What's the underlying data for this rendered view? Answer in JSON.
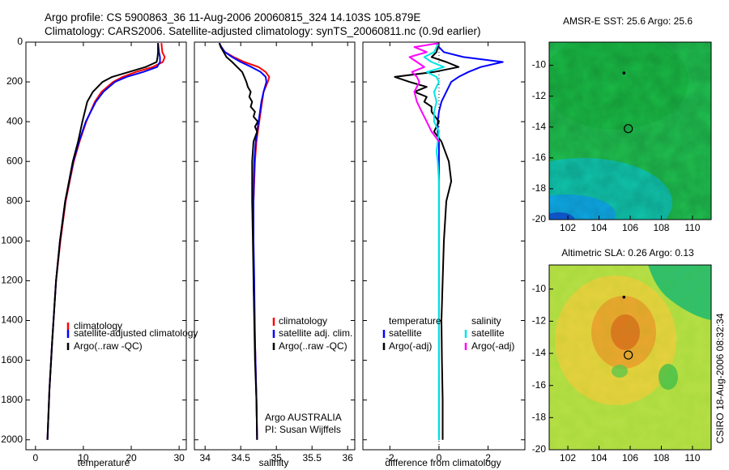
{
  "header": {
    "title_line1": "Argo profile: CS 5900863_36 11-Aug-2006 20060815_324 14.103S 105.879E",
    "title_line2": "Climatology: CARS2006. Satellite-adjusted climatology: synTS_20060811.nc (0.9d earlier)"
  },
  "colors": {
    "climatology": "#ff0000",
    "satellite": "#0000ff",
    "argo": "#000000",
    "satellite_sal_diff": "#00e5e5",
    "argo_sal_diff": "#ff00ff"
  },
  "credit": "CSIRO 18-Aug-2006 08:32:34",
  "chart_data": [
    {
      "type": "line",
      "name": "temperature-profile",
      "xlabel": "temperature",
      "xlim": [
        -2,
        31.5
      ],
      "ylim": [
        2050,
        0
      ],
      "xticks": [
        "0",
        "10",
        "20",
        "30"
      ],
      "yticks": [
        "0",
        "200",
        "400",
        "600",
        "800",
        "1000",
        "1200",
        "1400",
        "1600",
        "1800",
        "2000"
      ],
      "legend": [
        "climatology",
        "satellite-adjusted climatology",
        "Argo(..raw -QC)"
      ],
      "series": [
        {
          "name": "climatology",
          "color": "#ff0000",
          "depth": [
            5,
            50,
            75,
            100,
            125,
            150,
            175,
            200,
            250,
            300,
            400,
            500,
            600,
            800,
            1000,
            1200,
            1500,
            1750,
            2000
          ],
          "values": [
            26.3,
            26.5,
            27.0,
            26.6,
            24.5,
            21.0,
            18.2,
            16.2,
            13.8,
            12.4,
            10.6,
            9.2,
            8.0,
            6.3,
            5.2,
            4.3,
            3.5,
            2.9,
            2.5
          ]
        },
        {
          "name": "satellite-adjusted climatology",
          "color": "#0000ff",
          "depth": [
            5,
            50,
            75,
            100,
            125,
            150,
            175,
            200,
            250,
            300,
            400,
            500,
            600,
            800,
            1000,
            1200,
            1500,
            1750,
            2000
          ],
          "values": [
            25.6,
            25.8,
            26.0,
            26.0,
            25.4,
            22.5,
            19.0,
            16.6,
            14.2,
            12.6,
            10.5,
            9.1,
            7.9,
            6.2,
            5.1,
            4.3,
            3.5,
            2.9,
            2.5
          ]
        },
        {
          "name": "Argo(..raw -QC)",
          "color": "#000000",
          "depth": [
            5,
            50,
            75,
            100,
            125,
            150,
            175,
            200,
            250,
            300,
            350,
            400,
            500,
            600,
            800,
            1000,
            1200,
            1500,
            1750,
            2000
          ],
          "values": [
            25.6,
            25.6,
            25.5,
            25.3,
            23.0,
            19.5,
            16.0,
            14.0,
            12.0,
            10.8,
            10.3,
            9.8,
            8.9,
            7.8,
            6.2,
            5.1,
            4.3,
            3.5,
            2.9,
            2.5
          ]
        }
      ]
    },
    {
      "type": "line",
      "name": "salinity-profile",
      "xlabel": "salinity",
      "xlim": [
        33.85,
        36.1
      ],
      "ylim": [
        2050,
        0
      ],
      "xticks": [
        "34",
        "34.5",
        "35",
        "35.5",
        "36"
      ],
      "legend": [
        "climatology",
        "satellite adj. clim.",
        "Argo(..raw -QC)"
      ],
      "annotation": [
        "Argo AUSTRALIA",
        "PI: Susan Wijffels"
      ],
      "series": [
        {
          "name": "climatology",
          "color": "#ff0000",
          "depth": [
            5,
            25,
            50,
            75,
            100,
            125,
            150,
            175,
            200,
            250,
            300,
            350,
            400,
            450,
            500,
            600,
            800,
            1000,
            1200,
            1500,
            1800,
            2000
          ],
          "values": [
            34.2,
            34.22,
            34.28,
            34.4,
            34.55,
            34.75,
            34.85,
            34.9,
            34.88,
            34.82,
            34.8,
            34.78,
            34.76,
            34.74,
            34.72,
            34.7,
            34.68,
            34.68,
            34.68,
            34.7,
            34.72,
            34.73
          ]
        },
        {
          "name": "satellite adj. clim.",
          "color": "#0000ff",
          "depth": [
            5,
            25,
            50,
            75,
            100,
            125,
            150,
            175,
            200,
            250,
            300,
            350,
            400,
            450,
            500,
            600,
            800,
            1000,
            1200,
            1500,
            1800,
            2000
          ],
          "values": [
            34.2,
            34.23,
            34.28,
            34.38,
            34.5,
            34.65,
            34.78,
            34.85,
            34.86,
            34.82,
            34.79,
            34.77,
            34.75,
            34.73,
            34.71,
            34.69,
            34.68,
            34.68,
            34.69,
            34.7,
            34.72,
            34.73
          ]
        },
        {
          "name": "Argo(..raw -QC)",
          "color": "#000000",
          "depth": [
            5,
            25,
            50,
            75,
            100,
            125,
            150,
            175,
            200,
            225,
            250,
            275,
            300,
            325,
            350,
            375,
            400,
            425,
            450,
            500,
            600,
            800,
            1000,
            1200,
            1400,
            1600,
            1800,
            2000
          ],
          "values": [
            34.2,
            34.22,
            34.26,
            34.3,
            34.38,
            34.45,
            34.52,
            34.55,
            34.58,
            34.6,
            34.64,
            34.62,
            34.66,
            34.64,
            34.7,
            34.68,
            34.74,
            34.7,
            34.73,
            34.68,
            34.66,
            34.66,
            34.67,
            34.68,
            34.69,
            34.7,
            34.72,
            34.73
          ]
        }
      ]
    },
    {
      "type": "line",
      "name": "difference-profile",
      "xlabel": "difference from climatology",
      "xlim": [
        -3.1,
        3.5
      ],
      "ylim": [
        2050,
        0
      ],
      "xticks": [
        "-2",
        "0",
        "2"
      ],
      "legend_temperature_title": "temperature",
      "legend_salinity_title": "salinity",
      "legend": [
        "satellite",
        "Argo(-adj)",
        "satellite",
        "Argo(-adj)"
      ],
      "series": [
        {
          "name": "temperature satellite",
          "color": "#0000ff",
          "depth": [
            5,
            25,
            50,
            75,
            100,
            125,
            150,
            175,
            200,
            250,
            300,
            350,
            400,
            450,
            500,
            700,
            1000,
            1500,
            2000
          ],
          "values": [
            -0.1,
            0.0,
            0.2,
            1.0,
            2.6,
            1.7,
            1.2,
            0.8,
            0.5,
            0.3,
            0.1,
            0.0,
            -0.05,
            -0.05,
            0.0,
            0.0,
            0.0,
            0.0,
            0.0
          ]
        },
        {
          "name": "temperature Argo(-adj)",
          "color": "#000000",
          "depth": [
            5,
            50,
            75,
            100,
            125,
            150,
            175,
            200,
            225,
            250,
            275,
            300,
            325,
            350,
            400,
            450,
            500,
            600,
            700,
            800,
            1000,
            1200,
            1400,
            1600,
            1800,
            2000
          ],
          "values": [
            0.0,
            -0.1,
            -0.3,
            0.3,
            0.8,
            -0.2,
            -1.8,
            -1.2,
            -0.5,
            -1.0,
            -0.5,
            -0.6,
            -0.3,
            -0.3,
            0.0,
            -0.2,
            0.1,
            0.4,
            0.5,
            0.3,
            0.2,
            0.15,
            0.1,
            0.12,
            0.15,
            0.15
          ]
        },
        {
          "name": "salinity satellite",
          "color": "#00e5e5",
          "depth": [
            5,
            25,
            50,
            75,
            100,
            125,
            150,
            175,
            200,
            250,
            300,
            350,
            400,
            450,
            500,
            550,
            600,
            700,
            800,
            1000,
            1500,
            2000
          ],
          "values": [
            0.0,
            -0.1,
            -0.2,
            -0.6,
            -0.3,
            0.2,
            -0.5,
            -0.1,
            0.0,
            -0.2,
            -0.1,
            -0.2,
            -0.2,
            0.0,
            -0.05,
            -0.1,
            -0.05,
            0.0,
            0.0,
            0.0,
            0.0,
            0.0
          ]
        },
        {
          "name": "salinity Argo(-adj)",
          "color": "#ff00ff",
          "depth": [
            5,
            25,
            50,
            75,
            100,
            125,
            150,
            175,
            200,
            250,
            300,
            350,
            400,
            450,
            500
          ],
          "values": [
            0.0,
            -1.0,
            -0.5,
            -1.2,
            -0.9,
            -0.6,
            -1.1,
            -0.9,
            -0.8,
            -1.0,
            -0.9,
            -0.7,
            -0.5,
            -0.3,
            0.0
          ]
        }
      ]
    },
    {
      "type": "heatmap",
      "name": "sst-map",
      "title": "AMSR-E SST: 25.6 Argo: 25.6",
      "xlim": [
        100.8,
        111.2
      ],
      "ylim": [
        -20,
        -8.5
      ],
      "xticks": [
        "102",
        "104",
        "106",
        "108",
        "110"
      ],
      "yticks": [
        "-10",
        "-12",
        "-14",
        "-16",
        "-18",
        "-20"
      ],
      "argo_position": [
        105.879,
        -14.103
      ],
      "previous_position": [
        105.6,
        -10.5
      ]
    },
    {
      "type": "heatmap",
      "name": "sla-map",
      "title": "Altimetric SLA: 0.26 Argo: 0.13",
      "xlim": [
        100.8,
        111.2
      ],
      "ylim": [
        -20,
        -8.5
      ],
      "xticks": [
        "102",
        "104",
        "106",
        "108",
        "110"
      ],
      "yticks": [
        "-10",
        "-12",
        "-14",
        "-16",
        "-18",
        "-20"
      ],
      "argo_position": [
        105.879,
        -14.103
      ],
      "previous_position": [
        105.6,
        -10.5
      ]
    }
  ]
}
